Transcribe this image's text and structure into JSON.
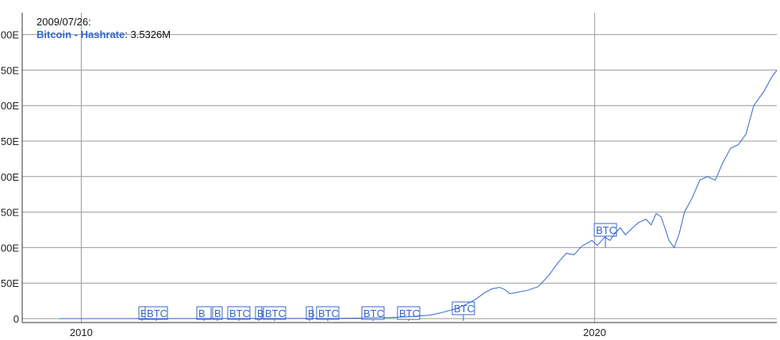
{
  "legend": {
    "date": "2009/07/26:",
    "series_name": "Bitcoin - Hashrate",
    "value": "3.5326M"
  },
  "chart_data": {
    "type": "line",
    "x_tick_labels": [
      "2010",
      "2020"
    ],
    "y_tick_labels": [
      "0",
      "50E",
      "00E",
      "50E",
      "00E",
      "50E",
      "00E",
      "50E",
      "00E"
    ],
    "ylim": [
      0,
      400
    ],
    "xlim": [
      2008.85,
      2023.55
    ],
    "grid": true,
    "legend_position": "top-left",
    "series": [
      {
        "name": "Bitcoin - Hashrate",
        "color": "#3366cc",
        "x": [
          2009.57,
          2015.0,
          2015.5,
          2016.0,
          2016.5,
          2016.8,
          2017.0,
          2017.3,
          2017.5,
          2017.7,
          2017.85,
          2018.0,
          2018.15,
          2018.25,
          2018.35,
          2018.5,
          2018.7,
          2018.9,
          2019.1,
          2019.3,
          2019.45,
          2019.6,
          2019.75,
          2019.95,
          2020.05,
          2020.2,
          2020.3,
          2020.4,
          2020.5,
          2020.6,
          2020.7,
          2020.85,
          2021.0,
          2021.1,
          2021.2,
          2021.3,
          2021.45,
          2021.55,
          2021.65,
          2021.75,
          2021.9,
          2022.05,
          2022.2,
          2022.35,
          2022.5,
          2022.65,
          2022.8,
          2022.95,
          2023.1,
          2023.3,
          2023.45,
          2023.55
        ],
        "y": [
          0,
          0.3,
          0.8,
          1.5,
          3,
          5,
          8,
          14,
          20,
          28,
          36,
          42,
          44,
          41,
          35,
          37,
          40,
          45,
          60,
          80,
          92,
          90,
          102,
          110,
          103,
          115,
          110,
          120,
          128,
          118,
          125,
          135,
          140,
          132,
          148,
          143,
          110,
          100,
          120,
          150,
          170,
          195,
          200,
          195,
          220,
          240,
          245,
          260,
          300,
          320,
          340,
          350
        ],
        "marker_label": "BTC"
      }
    ],
    "annotation_label": "BTC"
  }
}
